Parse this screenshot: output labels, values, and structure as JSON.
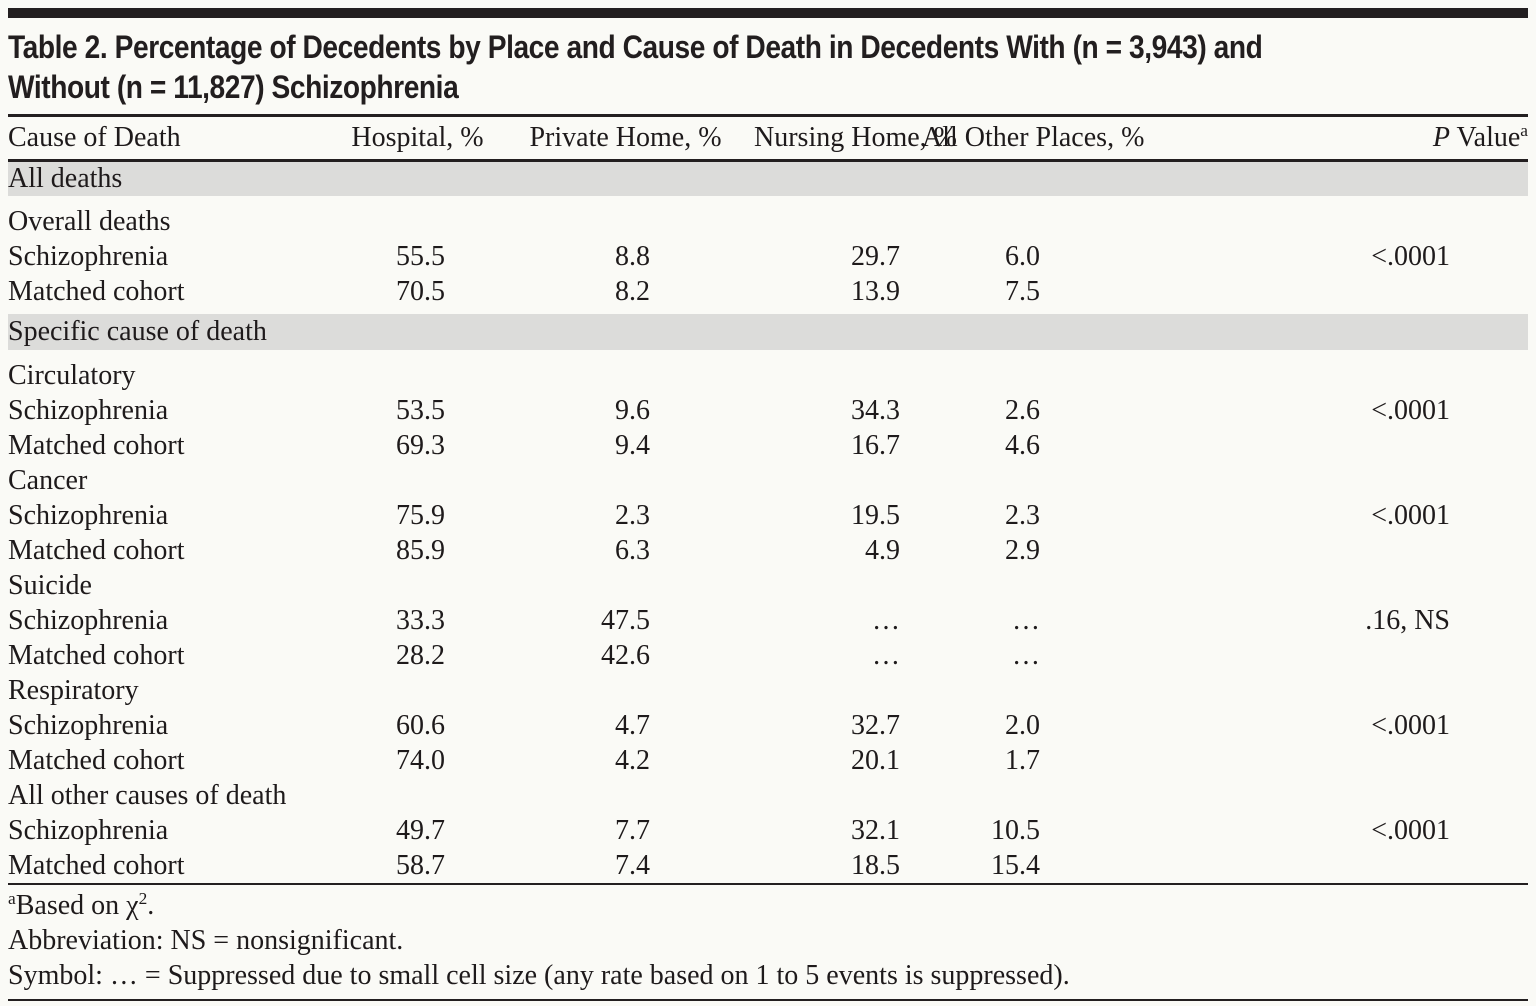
{
  "page": {
    "background": "#fafaf6",
    "band_color": "#dcdcda",
    "text_color": "#1e1a1b",
    "rule_color": "#231f20"
  },
  "title": {
    "line1": "Table 2. Percentage of Decedents by Place and Cause of Death in Decedents With (n = 3,943) and",
    "line2": "Without (n = 11,827) Schizophrenia"
  },
  "columns": {
    "cause": "Cause of Death",
    "hospital": "Hospital, %",
    "private_home": "Private Home, %",
    "nursing_home": "Nursing Home, %",
    "all_other_places": "All Other Places, %",
    "p_italic": "P",
    "p_rest": " Value",
    "p_sup": "a"
  },
  "table": {
    "sections": [
      {
        "band": "All deaths"
      },
      {
        "groups": [
          {
            "label": "Overall deaths",
            "rows": [
              [
                "Schizophrenia",
                "55.5",
                "8.8",
                "29.7",
                "6.0",
                "<.0001"
              ],
              [
                "Matched cohort",
                "70.5",
                "8.2",
                "13.9",
                "7.5",
                ""
              ]
            ]
          }
        ]
      },
      {
        "band": "Specific cause of death"
      },
      {
        "groups": [
          {
            "label": "Circulatory",
            "rows": [
              [
                "Schizophrenia",
                "53.5",
                "9.6",
                "34.3",
                "2.6",
                "<.0001"
              ],
              [
                "Matched cohort",
                "69.3",
                "9.4",
                "16.7",
                "4.6",
                ""
              ]
            ]
          },
          {
            "label": "Cancer",
            "rows": [
              [
                "Schizophrenia",
                "75.9",
                "2.3",
                "19.5",
                "2.3",
                "<.0001"
              ],
              [
                "Matched cohort",
                "85.9",
                "6.3",
                "4.9",
                "2.9",
                ""
              ]
            ]
          },
          {
            "label": "Suicide",
            "rows": [
              [
                "Schizophrenia",
                "33.3",
                "47.5",
                "…",
                "…",
                ".16, NS"
              ],
              [
                "Matched cohort",
                "28.2",
                "42.6",
                "…",
                "…",
                ""
              ]
            ]
          },
          {
            "label": "Respiratory",
            "rows": [
              [
                "Schizophrenia",
                "60.6",
                "4.7",
                "32.7",
                "2.0",
                "<.0001"
              ],
              [
                "Matched cohort",
                "74.0",
                "4.2",
                "20.1",
                "1.7",
                ""
              ]
            ]
          },
          {
            "label": "All other causes of death",
            "rows": [
              [
                "Schizophrenia",
                "49.7",
                "7.7",
                "32.1",
                "10.5",
                "<.0001"
              ],
              [
                "Matched cohort",
                "58.7",
                "7.4",
                "18.5",
                "15.4",
                ""
              ]
            ]
          }
        ]
      }
    ]
  },
  "footnotes": {
    "a_marker": "a",
    "a_body": "Based on χ",
    "a_sup": "2",
    "a_period": ".",
    "abbreviation": "Abbreviation: NS = nonsignificant.",
    "symbol": "Symbol: … = Suppressed due to small cell size (any rate based on 1 to 5 events is suppressed)."
  }
}
